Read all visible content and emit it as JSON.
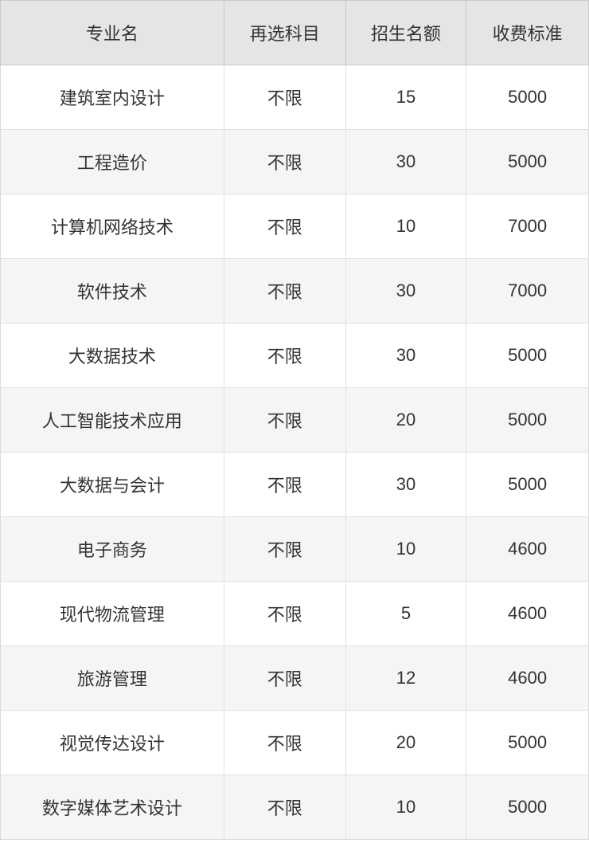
{
  "chart_data": {
    "type": "table",
    "columns": [
      "专业名",
      "再选科目",
      "招生名额",
      "收费标准"
    ],
    "rows": [
      [
        "建筑室内设计",
        "不限",
        "15",
        "5000"
      ],
      [
        "工程造价",
        "不限",
        "30",
        "5000"
      ],
      [
        "计算机网络技术",
        "不限",
        "10",
        "7000"
      ],
      [
        "软件技术",
        "不限",
        "30",
        "7000"
      ],
      [
        "大数据技术",
        "不限",
        "30",
        "5000"
      ],
      [
        "人工智能技术应用",
        "不限",
        "20",
        "5000"
      ],
      [
        "大数据与会计",
        "不限",
        "30",
        "5000"
      ],
      [
        "电子商务",
        "不限",
        "10",
        "4600"
      ],
      [
        "现代物流管理",
        "不限",
        "5",
        "4600"
      ],
      [
        "旅游管理",
        "不限",
        "12",
        "4600"
      ],
      [
        "视觉传达设计",
        "不限",
        "20",
        "5000"
      ],
      [
        "数字媒体艺术设计",
        "不限",
        "10",
        "5000"
      ]
    ]
  },
  "colors": {
    "header_bg": "#e5e5e5",
    "row_bg": "#ffffff",
    "row_alt_bg": "#f5f5f5",
    "border_outer": "#c9c9c9",
    "border_inner": "#e2e2e2",
    "text": "#333333"
  }
}
